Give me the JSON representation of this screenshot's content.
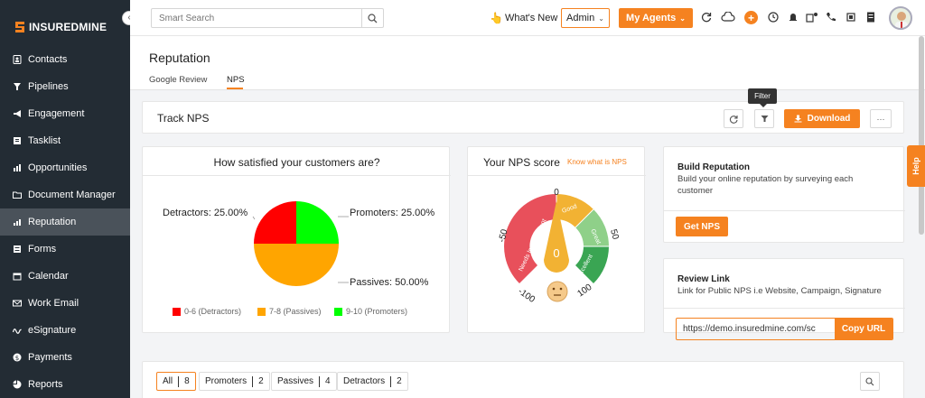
{
  "brand": {
    "name_bold": "INSUREDMINE",
    "name_light": ""
  },
  "sidebar": {
    "items": [
      {
        "label": "Contacts",
        "icon": "contacts-icon"
      },
      {
        "label": "Pipelines",
        "icon": "funnel-icon"
      },
      {
        "label": "Engagement",
        "icon": "megaphone-icon"
      },
      {
        "label": "Tasklist",
        "icon": "tasklist-icon"
      },
      {
        "label": "Opportunities",
        "icon": "bar-chart-icon"
      },
      {
        "label": "Document Manager",
        "icon": "folder-icon"
      },
      {
        "label": "Reputation",
        "icon": "reputation-icon",
        "active": true
      },
      {
        "label": "Forms",
        "icon": "forms-icon"
      },
      {
        "label": "Calendar",
        "icon": "calendar-icon"
      },
      {
        "label": "Work Email",
        "icon": "mail-icon"
      },
      {
        "label": "eSignature",
        "icon": "signature-icon"
      },
      {
        "label": "Payments",
        "icon": "dollar-icon"
      },
      {
        "label": "Reports",
        "icon": "pie-icon"
      }
    ]
  },
  "topbar": {
    "search_placeholder": "Smart Search",
    "whats_new": "What's New",
    "admin": "Admin",
    "agents": "My Agents"
  },
  "page": {
    "title": "Reputation",
    "tabs": [
      {
        "label": "Google Review"
      },
      {
        "label": "NPS",
        "active": true
      }
    ]
  },
  "track": {
    "title": "Track NPS",
    "download": "Download",
    "tooltip": "Filter"
  },
  "satisfaction": {
    "title": "How satisfied your customers are?",
    "labels": {
      "detractors": "Detractors: 25.00%",
      "promoters": "Promoters: 25.00%",
      "passives": "Passives: 50.00%"
    },
    "legend": [
      {
        "label": "0-6  (Detractors)",
        "color": "#ff0000"
      },
      {
        "label": "7-8  (Passives)",
        "color": "#ffa500"
      },
      {
        "label": "9-10  (Promoters)",
        "color": "#00ff00"
      }
    ]
  },
  "chart_data": {
    "type": "pie",
    "categories": [
      "Detractors",
      "Passives",
      "Promoters"
    ],
    "values": [
      25,
      50,
      25
    ],
    "colors": [
      "#ff0000",
      "#ffa500",
      "#00ff00"
    ],
    "title": "How satisfied your customers are?"
  },
  "nps": {
    "title": "Your NPS score",
    "know_link": "Know what is NPS",
    "score": "0",
    "ticks": {
      "top": "0",
      "left": "-50",
      "right": "50",
      "bottom_left": "-100",
      "bottom_right": "100"
    },
    "segments": [
      "Needs Improvement",
      "Good",
      "Great",
      "Excellent"
    ],
    "segment_colors": [
      "#e8505b",
      "#f2b233",
      "#8fd089",
      "#3aa553"
    ]
  },
  "build": {
    "title": "Build Reputation",
    "desc": "Build your online reputation by surveying each customer",
    "button": "Get NPS"
  },
  "review": {
    "title": "Review Link",
    "desc": "Link for Public NPS i.e Website, Campaign, Signature",
    "url": "https://demo.insuredmine.com/sc",
    "copy": "Copy URL"
  },
  "filters": [
    {
      "label": "All",
      "count": "8",
      "active": true
    },
    {
      "label": "Promoters",
      "count": "2"
    },
    {
      "label": "Passives",
      "count": "4"
    },
    {
      "label": "Detractors",
      "count": "2"
    }
  ],
  "help": "Help"
}
